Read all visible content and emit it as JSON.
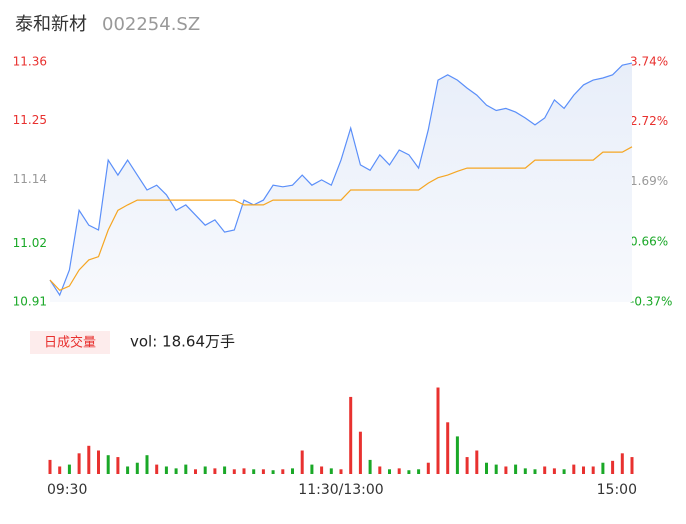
{
  "chart_data": [
    {
      "type": "line",
      "title": "泰和新材",
      "subtitle": "002254.SZ",
      "series": [
        {
          "color": "#5b8ff9",
          "values": [
            10.951,
            10.923,
            10.97,
            11.082,
            11.054,
            11.045,
            11.176,
            11.148,
            11.176,
            11.148,
            11.12,
            11.129,
            11.111,
            11.082,
            11.092,
            11.073,
            11.054,
            11.064,
            11.041,
            11.045,
            11.101,
            11.092,
            11.101,
            11.129,
            11.126,
            11.129,
            11.148,
            11.129,
            11.139,
            11.129,
            11.176,
            11.236,
            11.167,
            11.157,
            11.186,
            11.167,
            11.195,
            11.186,
            11.161,
            11.233,
            11.326,
            11.336,
            11.326,
            11.311,
            11.298,
            11.279,
            11.269,
            11.273,
            11.266,
            11.255,
            11.242,
            11.255,
            11.289,
            11.273,
            11.298,
            11.317,
            11.326,
            11.33,
            11.336,
            11.354,
            11.358
          ]
        },
        {
          "color": "#f5a623",
          "values": [
            10.951,
            10.932,
            10.94,
            10.97,
            10.989,
            10.995,
            11.045,
            11.082,
            11.092,
            11.101,
            11.101,
            11.101,
            11.101,
            11.101,
            11.101,
            11.101,
            11.101,
            11.101,
            11.101,
            11.101,
            11.092,
            11.092,
            11.092,
            11.101,
            11.101,
            11.101,
            11.101,
            11.101,
            11.101,
            11.101,
            11.101,
            11.12,
            11.12,
            11.12,
            11.12,
            11.12,
            11.12,
            11.12,
            11.12,
            11.133,
            11.143,
            11.148,
            11.155,
            11.161,
            11.161,
            11.161,
            11.161,
            11.161,
            11.161,
            11.161,
            11.176,
            11.176,
            11.176,
            11.176,
            11.176,
            11.176,
            11.176,
            11.191,
            11.191,
            11.191,
            11.201
          ]
        }
      ],
      "ylim": [
        10.91,
        11.36
      ],
      "yticks": [
        11.36,
        11.25,
        11.14,
        11.02,
        10.91
      ],
      "y2lim": [
        -0.37,
        3.74
      ],
      "y2ticks": [
        {
          "value": 3.74,
          "label": "3.74%"
        },
        {
          "value": 2.72,
          "label": "2.72%"
        },
        {
          "value": 1.69,
          "label": "1.69%"
        },
        {
          "value": 0.66,
          "label": "0.66%"
        },
        {
          "value": -0.37,
          "label": "-0.37%"
        }
      ]
    },
    {
      "type": "bar",
      "title": "日成交量",
      "annotation": "vol: 18.64万手",
      "categories": [
        "09:30",
        null,
        null,
        null,
        null,
        null,
        null,
        null,
        null,
        null,
        null,
        null,
        null,
        null,
        null,
        null,
        null,
        null,
        null,
        null,
        null,
        null,
        null,
        null,
        null,
        null,
        null,
        null,
        null,
        null,
        "11:30/13:00",
        null,
        null,
        null,
        null,
        null,
        null,
        null,
        null,
        null,
        null,
        null,
        null,
        null,
        null,
        null,
        null,
        null,
        null,
        null,
        null,
        null,
        null,
        null,
        null,
        null,
        null,
        null,
        null,
        null,
        "15:00"
      ],
      "values": [
        15,
        8,
        10,
        22,
        30,
        25,
        20,
        18,
        8,
        12,
        20,
        10,
        8,
        6,
        10,
        5,
        8,
        6,
        8,
        5,
        6,
        5,
        5,
        4,
        5,
        6,
        25,
        10,
        8,
        6,
        5,
        82,
        45,
        15,
        8,
        5,
        6,
        4,
        5,
        12,
        92,
        55,
        40,
        18,
        25,
        12,
        10,
        8,
        10,
        6,
        5,
        8,
        6,
        5,
        10,
        8,
        8,
        12,
        14,
        22,
        18
      ],
      "colors": [
        "#e8312f",
        "#e8312f",
        "#1aa827",
        "#e8312f",
        "#e8312f",
        "#e8312f",
        "#1aa827",
        "#e8312f",
        "#1aa827",
        "#1aa827",
        "#1aa827",
        "#e8312f",
        "#1aa827",
        "#1aa827",
        "#1aa827",
        "#e8312f",
        "#1aa827",
        "#e8312f",
        "#1aa827",
        "#e8312f",
        "#e8312f",
        "#1aa827",
        "#e8312f",
        "#1aa827",
        "#e8312f",
        "#1aa827",
        "#e8312f",
        "#1aa827",
        "#e8312f",
        "#1aa827",
        "#e8312f",
        "#e8312f",
        "#e8312f",
        "#1aa827",
        "#e8312f",
        "#1aa827",
        "#e8312f",
        "#1aa827",
        "#1aa827",
        "#e8312f",
        "#e8312f",
        "#e8312f",
        "#1aa827",
        "#e8312f",
        "#e8312f",
        "#1aa827",
        "#1aa827",
        "#e8312f",
        "#1aa827",
        "#1aa827",
        "#1aa827",
        "#e8312f",
        "#e8312f",
        "#1aa827",
        "#e8312f",
        "#e8312f",
        "#e8312f",
        "#1aa827",
        "#e8312f",
        "#e8312f",
        "#e8312f"
      ],
      "ylim": [
        0,
        100
      ]
    }
  ]
}
